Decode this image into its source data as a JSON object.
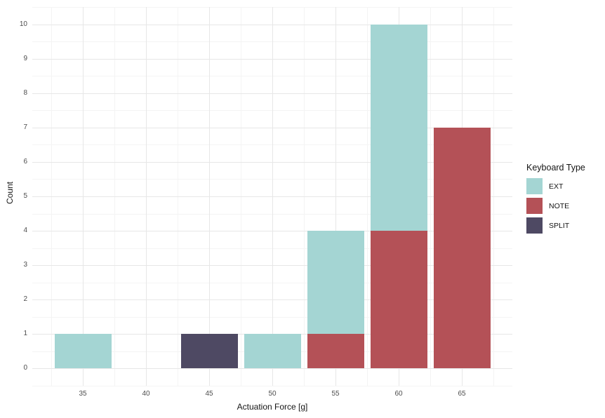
{
  "style": {
    "background": "#ffffff",
    "grid_major_color": "#e7e7e7",
    "grid_minor_color": "#f4f4f4",
    "tick_label_color": "#4d4d4d",
    "axis_title_color": "#141414"
  },
  "chart_data": {
    "type": "bar",
    "stacked": true,
    "orientation": "vertical",
    "title": "",
    "xlabel": "Actuation Force [g]",
    "ylabel": "Count",
    "legend_title": "Keyboard Type",
    "legend_position": "right",
    "grid": true,
    "categories": [
      35,
      40,
      45,
      50,
      55,
      60,
      65
    ],
    "series": [
      {
        "name": "EXT",
        "color": "#a4d5d3",
        "values": [
          1,
          0,
          0,
          1,
          3,
          6,
          0
        ]
      },
      {
        "name": "NOTE",
        "color": "#b45157",
        "values": [
          0,
          0,
          0,
          0,
          1,
          4,
          7
        ]
      },
      {
        "name": "SPLIT",
        "color": "#4e4963",
        "values": [
          0,
          0,
          1,
          0,
          0,
          0,
          0
        ]
      }
    ],
    "stack_order_bottom_to_top": [
      "SPLIT",
      "NOTE",
      "EXT"
    ],
    "totals_per_category": [
      1,
      0,
      1,
      1,
      4,
      10,
      7
    ],
    "bar_width": 4.5,
    "xlim": [
      31,
      69
    ],
    "ylim": [
      -0.5,
      10.5
    ],
    "x_major_ticks": [
      35,
      40,
      45,
      50,
      55,
      60,
      65
    ],
    "x_minor_ticks": [
      32.5,
      37.5,
      42.5,
      47.5,
      52.5,
      57.5,
      62.5,
      67.5
    ],
    "y_major_ticks": [
      0,
      1,
      2,
      3,
      4,
      5,
      6,
      7,
      8,
      9,
      10
    ],
    "y_minor_ticks": [
      -0.5,
      0.5,
      1.5,
      2.5,
      3.5,
      4.5,
      5.5,
      6.5,
      7.5,
      8.5,
      9.5,
      10.5
    ]
  }
}
